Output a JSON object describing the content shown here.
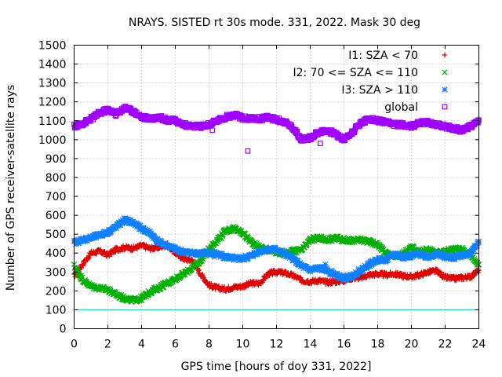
{
  "chart_data": {
    "type": "scatter",
    "title": "NRAYS. SISTED rt 30s mode. 331, 2022. Mask 30 deg",
    "xlabel": "GPS time [hours of doy 331, 2022]",
    "ylabel": "Number of GPS receiver-satellite rays",
    "xlim": [
      0,
      24
    ],
    "ylim": [
      0,
      1500
    ],
    "xticks": [
      "0",
      "2",
      "4",
      "6",
      "8",
      "10",
      "12",
      "14",
      "16",
      "18",
      "20",
      "22",
      "24"
    ],
    "yticks": [
      "0",
      "100",
      "200",
      "300",
      "400",
      "500",
      "600",
      "700",
      "800",
      "900",
      "1000",
      "1100",
      "1200",
      "1300",
      "1400",
      "1500"
    ],
    "grid": true,
    "legend_position": "top-right",
    "threshold_line": {
      "y": 100,
      "color": "#00c8c8"
    },
    "series": [
      {
        "name": "I1: SZA < 70",
        "marker": "+",
        "color": "#e00000",
        "x": [
          0,
          0.5,
          1,
          1.5,
          2,
          2.5,
          3,
          3.5,
          4,
          4.5,
          5,
          5.5,
          6,
          6.5,
          7,
          7.5,
          8,
          8.5,
          9,
          9.5,
          10,
          10.5,
          11,
          11.5,
          12,
          12.5,
          13,
          13.5,
          14,
          14.5,
          15,
          15.5,
          16,
          16.5,
          17,
          17.5,
          18,
          18.5,
          19,
          19.5,
          20,
          20.5,
          21,
          21.5,
          22,
          22.5,
          23,
          23.5,
          24
        ],
        "y": [
          280,
          340,
          400,
          410,
          390,
          420,
          430,
          425,
          440,
          425,
          430,
          445,
          400,
          370,
          360,
          290,
          230,
          215,
          210,
          220,
          225,
          240,
          240,
          290,
          300,
          295,
          280,
          255,
          250,
          255,
          245,
          250,
          255,
          270,
          270,
          285,
          290,
          285,
          290,
          280,
          275,
          285,
          300,
          305,
          270,
          265,
          270,
          275,
          310
        ]
      },
      {
        "name": "I2: 70 <= SZA <= 110",
        "marker": "x",
        "color": "#00b000",
        "x": [
          0,
          0.5,
          1,
          1.5,
          2,
          2.5,
          3,
          3.5,
          4,
          4.5,
          5,
          5.5,
          6,
          6.5,
          7,
          7.5,
          8,
          8.5,
          9,
          9.5,
          10,
          10.5,
          11,
          11.5,
          12,
          12.5,
          13,
          13.5,
          14,
          14.5,
          15,
          15.5,
          16,
          16.5,
          17,
          17.5,
          18,
          18.5,
          19,
          19.5,
          20,
          20.5,
          21,
          21.5,
          22,
          22.5,
          23,
          23.5,
          24
        ],
        "y": [
          330,
          260,
          225,
          215,
          205,
          180,
          160,
          150,
          160,
          195,
          215,
          240,
          265,
          290,
          320,
          360,
          420,
          470,
          520,
          530,
          505,
          460,
          430,
          420,
          405,
          395,
          410,
          415,
          470,
          480,
          470,
          480,
          470,
          465,
          470,
          460,
          445,
          400,
          380,
          395,
          430,
          405,
          420,
          400,
          410,
          420,
          420,
          390,
          340
        ]
      },
      {
        "name": "I3: SZA > 110",
        "marker": "*",
        "color": "#1080ff",
        "x": [
          0,
          0.5,
          1,
          1.5,
          2,
          2.5,
          3,
          3.5,
          4,
          4.5,
          5,
          5.5,
          6,
          6.5,
          7,
          7.5,
          8,
          8.5,
          9,
          9.5,
          10,
          10.5,
          11,
          11.5,
          12,
          12.5,
          13,
          13.5,
          14,
          14.5,
          15,
          15.5,
          16,
          16.5,
          17,
          17.5,
          18,
          18.5,
          19,
          19.5,
          20,
          20.5,
          21,
          21.5,
          22,
          22.5,
          23,
          23.5,
          24
        ],
        "y": [
          455,
          470,
          480,
          495,
          510,
          540,
          575,
          560,
          530,
          505,
          460,
          440,
          420,
          405,
          400,
          400,
          400,
          395,
          380,
          370,
          370,
          385,
          410,
          420,
          420,
          395,
          370,
          330,
          310,
          320,
          310,
          285,
          265,
          280,
          310,
          340,
          365,
          365,
          395,
          380,
          385,
          395,
          380,
          395,
          380,
          375,
          390,
          400,
          460
        ]
      },
      {
        "name": "global",
        "marker": "square",
        "color": "#a000ff",
        "x": [
          0,
          0.5,
          1,
          1.5,
          2,
          2.5,
          3,
          3.5,
          4,
          4.5,
          5,
          5.5,
          6,
          6.5,
          7,
          7.5,
          8,
          8.5,
          9,
          9.5,
          10,
          10.5,
          11,
          11.5,
          12,
          12.5,
          13,
          13.5,
          14,
          14.5,
          15,
          15.5,
          16,
          16.5,
          17,
          17.5,
          18,
          18.5,
          19,
          19.5,
          20,
          20.5,
          21,
          21.5,
          22,
          22.5,
          23,
          23.5,
          24
        ],
        "y": [
          1070,
          1085,
          1110,
          1140,
          1160,
          1135,
          1170,
          1150,
          1120,
          1110,
          1120,
          1105,
          1100,
          1080,
          1070,
          1070,
          1080,
          1100,
          1120,
          1130,
          1115,
          1110,
          1110,
          1120,
          1105,
          1095,
          1060,
          1000,
          1010,
          1040,
          1050,
          1030,
          1000,
          1040,
          1090,
          1110,
          1100,
          1090,
          1080,
          1080,
          1070,
          1090,
          1090,
          1080,
          1070,
          1060,
          1050,
          1070,
          1100
        ]
      }
    ],
    "outliers": [
      {
        "series": "global",
        "x": 10.3,
        "y": 940
      },
      {
        "series": "global",
        "x": 14.6,
        "y": 980
      },
      {
        "series": "global",
        "x": 8.2,
        "y": 1050
      },
      {
        "series": "I3: SZA > 110",
        "x": 8.3,
        "y": 380
      },
      {
        "series": "I3: SZA > 110",
        "x": 14.9,
        "y": 340
      }
    ]
  }
}
